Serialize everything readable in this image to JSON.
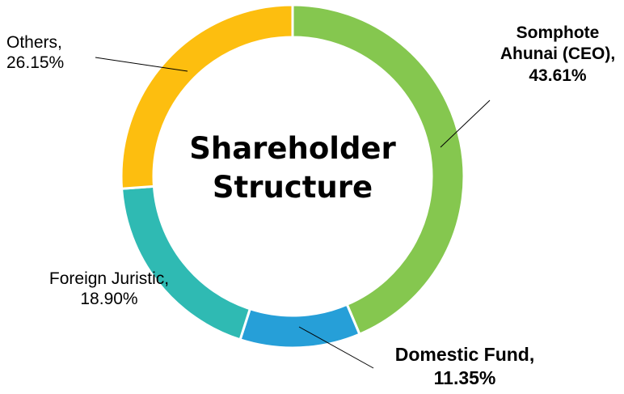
{
  "chart_data": {
    "type": "pie",
    "title": "Shareholder Structure",
    "categories": [
      "Somphote Ahunai (CEO),",
      "Domestic Fund,",
      "Foreign Juristic,",
      "Others,"
    ],
    "values": [
      43.61,
      11.35,
      18.9,
      26.15
    ],
    "value_labels": [
      "43.61%",
      "11.35%",
      "18.90%",
      "26.15%"
    ],
    "colors": [
      "#85c74f",
      "#269fd8",
      "#2fbab3",
      "#fdbe0f"
    ],
    "donut": true
  }
}
